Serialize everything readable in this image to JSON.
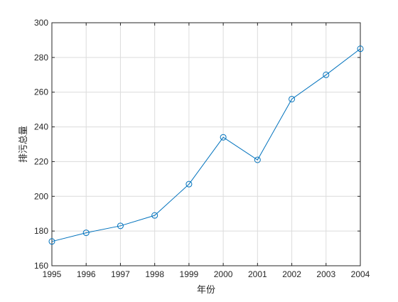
{
  "chart_data": {
    "type": "line",
    "title": "",
    "xlabel": "年份",
    "ylabel": "排污总量",
    "x": [
      1995,
      1996,
      1997,
      1998,
      1999,
      2000,
      2001,
      2002,
      2003,
      2004
    ],
    "series": [
      {
        "values": [
          174,
          179,
          183,
          189,
          207,
          234,
          221,
          256,
          270,
          285
        ],
        "color": "#0072bd",
        "marker": "circle"
      }
    ],
    "xlim": [
      1995,
      2004
    ],
    "ylim": [
      160,
      300
    ],
    "xticks": [
      1995,
      1996,
      1997,
      1998,
      1999,
      2000,
      2001,
      2002,
      2003,
      2004
    ],
    "yticks": [
      160,
      180,
      200,
      220,
      240,
      260,
      280,
      300
    ],
    "grid": true,
    "box": true
  }
}
